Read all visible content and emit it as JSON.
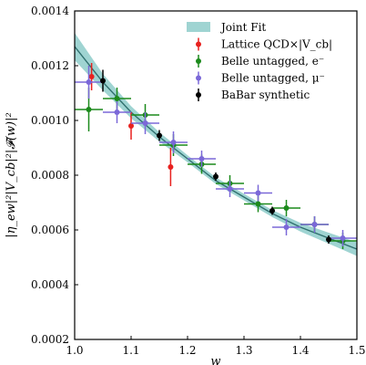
{
  "chart_data": {
    "type": "scatter",
    "xlabel": "w",
    "ylabel": "|η_ew|²|V_cb|²|𝓕(w)|²",
    "xlim": [
      1.0,
      1.5
    ],
    "ylim": [
      0.0002,
      0.0014
    ],
    "xticks": [
      "1.0",
      "1.1",
      "1.2",
      "1.3",
      "1.4",
      "1.5"
    ],
    "yticks": [
      "0.0002",
      "0.0004",
      "0.0006",
      "0.0008",
      "0.0010",
      "0.0012",
      "0.0014"
    ],
    "grid": false,
    "legend_position": "top-right",
    "fit": {
      "name": "Joint Fit",
      "color": "#9fd4d2",
      "line_color": "#2f6f6e",
      "points": [
        {
          "x": 1.0,
          "y": 0.00127,
          "band": 5e-05
        },
        {
          "x": 1.05,
          "y": 0.00114,
          "band": 3e-05
        },
        {
          "x": 1.1,
          "y": 0.00103,
          "band": 2.2e-05
        },
        {
          "x": 1.15,
          "y": 0.00094,
          "band": 1.7e-05
        },
        {
          "x": 1.2,
          "y": 0.00086,
          "band": 1.3e-05
        },
        {
          "x": 1.25,
          "y": 0.00078,
          "band": 1.2e-05
        },
        {
          "x": 1.3,
          "y": 0.00072,
          "band": 1.2e-05
        },
        {
          "x": 1.35,
          "y": 0.00066,
          "band": 1.3e-05
        },
        {
          "x": 1.4,
          "y": 0.00061,
          "band": 1.6e-05
        },
        {
          "x": 1.45,
          "y": 0.00057,
          "band": 2e-05
        },
        {
          "x": 1.5,
          "y": 0.00053,
          "band": 2.5e-05
        }
      ]
    },
    "series": [
      {
        "name": "Lattice QCD×|V_cb|",
        "color": "#e8211f",
        "points": [
          {
            "x": 1.03,
            "y": 0.00116,
            "yerr": 5e-05,
            "xerr": 0
          },
          {
            "x": 1.1,
            "y": 0.00098,
            "yerr": 5e-05,
            "xerr": 0
          },
          {
            "x": 1.17,
            "y": 0.00083,
            "yerr": 7e-05,
            "xerr": 0
          }
        ]
      },
      {
        "name": "Belle untagged, e⁻",
        "color": "#1c8a1c",
        "points": [
          {
            "x": 1.025,
            "y": 0.00104,
            "yerr": 8e-05,
            "xerr": 0.025
          },
          {
            "x": 1.075,
            "y": 0.00108,
            "yerr": 4e-05,
            "xerr": 0.025
          },
          {
            "x": 1.125,
            "y": 0.00102,
            "yerr": 4e-05,
            "xerr": 0.025
          },
          {
            "x": 1.175,
            "y": 0.00091,
            "yerr": 4e-05,
            "xerr": 0.025
          },
          {
            "x": 1.225,
            "y": 0.00084,
            "yerr": 3.5e-05,
            "xerr": 0.025
          },
          {
            "x": 1.275,
            "y": 0.00077,
            "yerr": 3e-05,
            "xerr": 0.025
          },
          {
            "x": 1.325,
            "y": 0.000695,
            "yerr": 3e-05,
            "xerr": 0.025
          },
          {
            "x": 1.375,
            "y": 0.00068,
            "yerr": 3e-05,
            "xerr": 0.025
          },
          {
            "x": 1.425,
            "y": 0.00062,
            "yerr": 3e-05,
            "xerr": 0.025
          },
          {
            "x": 1.475,
            "y": 0.00056,
            "yerr": 3e-05,
            "xerr": 0.025
          }
        ]
      },
      {
        "name": "Belle untagged, μ⁻",
        "color": "#7b68d8",
        "points": [
          {
            "x": 1.025,
            "y": 0.00114,
            "yerr": 6e-05,
            "xerr": 0.025
          },
          {
            "x": 1.075,
            "y": 0.00103,
            "yerr": 4e-05,
            "xerr": 0.025
          },
          {
            "x": 1.125,
            "y": 0.00099,
            "yerr": 4e-05,
            "xerr": 0.025
          },
          {
            "x": 1.175,
            "y": 0.00092,
            "yerr": 4e-05,
            "xerr": 0.025
          },
          {
            "x": 1.225,
            "y": 0.00086,
            "yerr": 3e-05,
            "xerr": 0.025
          },
          {
            "x": 1.275,
            "y": 0.00075,
            "yerr": 3e-05,
            "xerr": 0.025
          },
          {
            "x": 1.325,
            "y": 0.000735,
            "yerr": 3e-05,
            "xerr": 0.025
          },
          {
            "x": 1.375,
            "y": 0.00061,
            "yerr": 3e-05,
            "xerr": 0.025
          },
          {
            "x": 1.425,
            "y": 0.00062,
            "yerr": 3e-05,
            "xerr": 0.025
          },
          {
            "x": 1.475,
            "y": 0.00057,
            "yerr": 3e-05,
            "xerr": 0.025
          }
        ]
      },
      {
        "name": "BaBar synthetic",
        "color": "#000000",
        "points": [
          {
            "x": 1.05,
            "y": 0.001145,
            "yerr": 4e-05,
            "xerr": 0
          },
          {
            "x": 1.15,
            "y": 0.000945,
            "yerr": 2e-05,
            "xerr": 0
          },
          {
            "x": 1.25,
            "y": 0.000795,
            "yerr": 1.5e-05,
            "xerr": 0
          },
          {
            "x": 1.35,
            "y": 0.00067,
            "yerr": 1.5e-05,
            "xerr": 0
          },
          {
            "x": 1.45,
            "y": 0.000565,
            "yerr": 1.5e-05,
            "xerr": 0
          }
        ]
      }
    ]
  }
}
